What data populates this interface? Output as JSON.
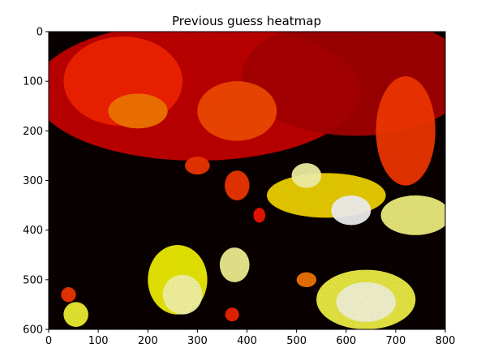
{
  "chart_data": {
    "type": "heatmap",
    "title": "Previous guess heatmap",
    "xlabel": "",
    "ylabel": "",
    "xlim": [
      0,
      800
    ],
    "ylim": [
      600,
      0
    ],
    "y_axis_inverted": true,
    "grid": false,
    "colormap": "hot",
    "background_value_color": "#0a0000",
    "x_ticks": [
      "0",
      "100",
      "200",
      "300",
      "400",
      "500",
      "600",
      "700",
      "800"
    ],
    "y_ticks": [
      "0",
      "100",
      "200",
      "300",
      "400",
      "500",
      "600"
    ],
    "regions": [
      {
        "x": 300,
        "y": 120,
        "rx": 330,
        "ry": 140,
        "level": 0.3
      },
      {
        "x": 620,
        "y": 90,
        "rx": 230,
        "ry": 120,
        "level": 0.25
      },
      {
        "x": 150,
        "y": 100,
        "rx": 120,
        "ry": 90,
        "level": 0.42
      },
      {
        "x": 180,
        "y": 160,
        "rx": 60,
        "ry": 35,
        "level": 0.55
      },
      {
        "x": 380,
        "y": 160,
        "rx": 80,
        "ry": 60,
        "level": 0.48
      },
      {
        "x": 720,
        "y": 200,
        "rx": 60,
        "ry": 110,
        "level": 0.45
      },
      {
        "x": 560,
        "y": 330,
        "rx": 120,
        "ry": 45,
        "level": 0.7
      },
      {
        "x": 520,
        "y": 290,
        "rx": 30,
        "ry": 25,
        "level": 0.92
      },
      {
        "x": 610,
        "y": 360,
        "rx": 40,
        "ry": 30,
        "level": 1.0
      },
      {
        "x": 740,
        "y": 370,
        "rx": 70,
        "ry": 40,
        "level": 0.88
      },
      {
        "x": 300,
        "y": 270,
        "rx": 25,
        "ry": 18,
        "level": 0.45
      },
      {
        "x": 380,
        "y": 310,
        "rx": 25,
        "ry": 30,
        "level": 0.45
      },
      {
        "x": 425,
        "y": 370,
        "rx": 12,
        "ry": 15,
        "level": 0.4
      },
      {
        "x": 260,
        "y": 500,
        "rx": 60,
        "ry": 70,
        "level": 0.75
      },
      {
        "x": 270,
        "y": 530,
        "rx": 40,
        "ry": 40,
        "level": 0.92
      },
      {
        "x": 375,
        "y": 470,
        "rx": 30,
        "ry": 35,
        "level": 0.9
      },
      {
        "x": 370,
        "y": 570,
        "rx": 14,
        "ry": 14,
        "level": 0.42
      },
      {
        "x": 55,
        "y": 570,
        "rx": 25,
        "ry": 25,
        "level": 0.8
      },
      {
        "x": 40,
        "y": 530,
        "rx": 15,
        "ry": 15,
        "level": 0.45
      },
      {
        "x": 640,
        "y": 540,
        "rx": 100,
        "ry": 60,
        "level": 0.82
      },
      {
        "x": 640,
        "y": 545,
        "rx": 60,
        "ry": 40,
        "level": 0.97
      },
      {
        "x": 520,
        "y": 500,
        "rx": 20,
        "ry": 15,
        "level": 0.55
      }
    ]
  }
}
